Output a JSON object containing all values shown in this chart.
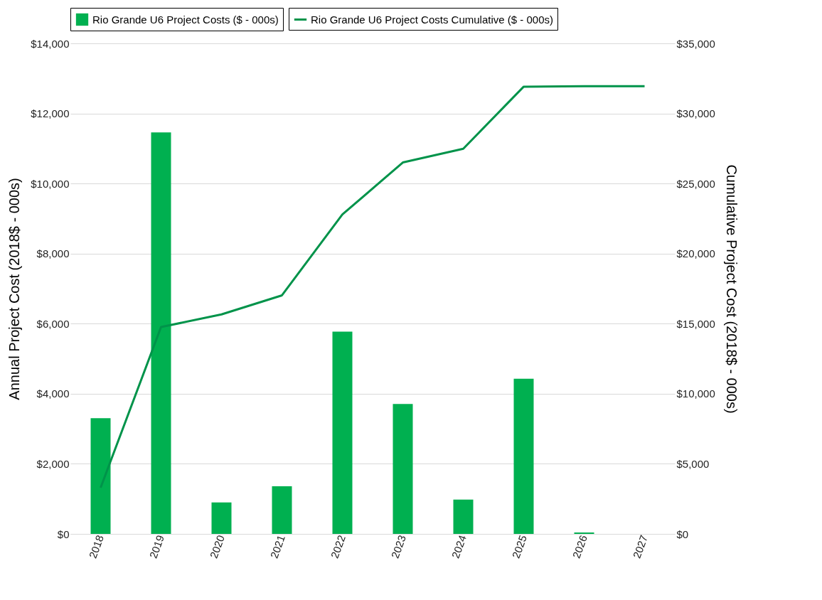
{
  "chart_data": {
    "type": "bar",
    "categories": [
      "2018",
      "2019",
      "2020",
      "2021",
      "2022",
      "2023",
      "2024",
      "2025",
      "2026",
      "2027"
    ],
    "ylabel": "Annual Project Cost (2018$ - 000s)",
    "y2label": "Cumulative Project Cost (2018$ - 000s)",
    "ylim": [
      0,
      14000
    ],
    "yticks": [
      {
        "value": 0,
        "label": "$0"
      },
      {
        "value": 2000,
        "label": "$2,000"
      },
      {
        "value": 4000,
        "label": "$4,000"
      },
      {
        "value": 6000,
        "label": "$6,000"
      },
      {
        "value": 8000,
        "label": "$8,000"
      },
      {
        "value": 10000,
        "label": "$10,000"
      },
      {
        "value": 12000,
        "label": "$12,000"
      },
      {
        "value": 14000,
        "label": "$14,000"
      }
    ],
    "y2lim": [
      0,
      35000
    ],
    "y2ticks": [
      {
        "value": 0,
        "label": "$0"
      },
      {
        "value": 5000,
        "label": "$5,000"
      },
      {
        "value": 10000,
        "label": "$10,000"
      },
      {
        "value": 15000,
        "label": "$15,000"
      },
      {
        "value": 20000,
        "label": "$20,000"
      },
      {
        "value": 25000,
        "label": "$25,000"
      },
      {
        "value": 30000,
        "label": "$30,000"
      },
      {
        "value": 35000,
        "label": "$35,000"
      }
    ],
    "grid": "y",
    "legend": "top",
    "series": [
      {
        "name": "Rio Grande U6 Project Costs ($ - 000s)",
        "color": "#00b050",
        "values": [
          3300,
          11460,
          900,
          1360,
          5770,
          3710,
          980,
          4430,
          40,
          0
        ]
      },
      {
        "name": "Rio Grande U6 Project Costs Cumulative ($ - 000s)",
        "type": "line",
        "axis": "y2",
        "color": "#00934a",
        "values": [
          3300,
          14760,
          15660,
          17020,
          22790,
          26500,
          27480,
          31910,
          31950,
          31950
        ]
      }
    ]
  }
}
